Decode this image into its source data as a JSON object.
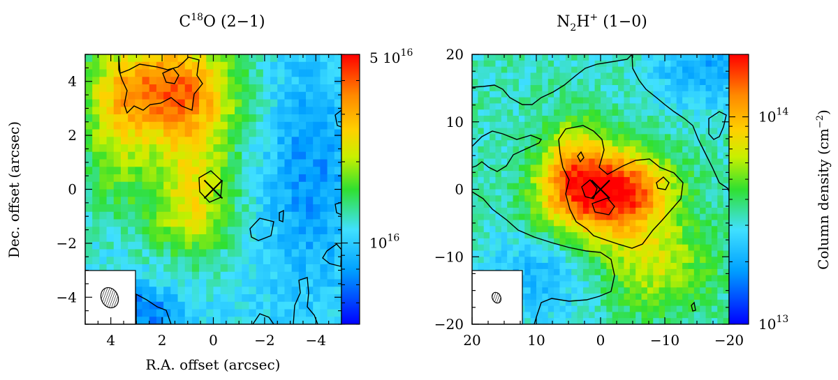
{
  "panels": [
    {
      "title": {
        "pre": "C",
        "sup": "18",
        "post": "O (2−1)"
      },
      "xlabel": "R.A. offset (arcsec)",
      "ylabel": "Dec. offset (arcsec)",
      "xlim": [
        5,
        -5
      ],
      "ylim": [
        -5,
        5
      ],
      "xticks": [
        "4",
        "2",
        "0",
        "−2",
        "−4"
      ],
      "xtick_values": [
        4,
        2,
        0,
        -2,
        -4
      ],
      "yticks": [
        "−4",
        "−2",
        "0",
        "2",
        "4"
      ],
      "ytick_values": [
        -4,
        -2,
        0,
        2,
        4
      ],
      "colorbar": {
        "scale": "log",
        "range": [
          5000000000000000.0,
          5e+16
        ],
        "tick_values": [
          5e+16,
          1e+16
        ],
        "labels": [
          {
            "base": "5 10",
            "exp": "16"
          },
          {
            "base": "10",
            "exp": "16"
          }
        ]
      },
      "cross_center": [
        0,
        0
      ]
    },
    {
      "title": {
        "pre": "N",
        "sub": "2",
        "mid": "H",
        "sup": "+",
        "post": " (1−0)"
      },
      "xlabel": "",
      "ylabel": "",
      "xlim": [
        20,
        -20
      ],
      "ylim": [
        -20,
        20
      ],
      "xticks": [
        "20",
        "10",
        "0",
        "−10",
        "−20"
      ],
      "xtick_values": [
        20,
        10,
        0,
        -10,
        -20
      ],
      "yticks": [
        "−20",
        "−10",
        "0",
        "10",
        "20"
      ],
      "ytick_values": [
        -20,
        -10,
        0,
        10,
        20
      ],
      "colorbar": {
        "scale": "log",
        "range": [
          10000000000000.0,
          200000000000000.0
        ],
        "tick_values": [
          100000000000000.0,
          10000000000000.0
        ],
        "labels": [
          {
            "base": "10",
            "exp": "14"
          },
          {
            "base": "10",
            "exp": "13"
          }
        ],
        "axis_label": {
          "pre": "Column density (cm",
          "sup": "−2",
          "post": ")"
        }
      },
      "cross_center": [
        0,
        0
      ]
    }
  ]
}
